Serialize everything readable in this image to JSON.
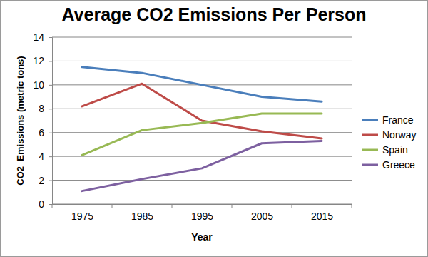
{
  "chart_data": {
    "type": "line",
    "title": "Average CO2 Emissions Per Person",
    "x_label": "Year",
    "y_label": "CO2  Emissions (metric tons)",
    "categories": [
      "1975",
      "1985",
      "1995",
      "2005",
      "2015"
    ],
    "series": [
      {
        "name": "France",
        "color": "#4a7ebb",
        "values": [
          11.5,
          11.0,
          10.0,
          9.0,
          8.6
        ]
      },
      {
        "name": "Norway",
        "color": "#be4b48",
        "values": [
          8.2,
          10.1,
          7.0,
          6.1,
          5.5
        ]
      },
      {
        "name": "Spain",
        "color": "#98b954",
        "values": [
          4.1,
          6.2,
          6.8,
          7.6,
          7.6
        ]
      },
      {
        "name": "Greece",
        "color": "#7d60a0",
        "values": [
          1.1,
          2.1,
          3.0,
          5.1,
          5.3
        ]
      }
    ],
    "ylim": [
      0,
      14
    ],
    "yticks": [
      0,
      2,
      4,
      6,
      8,
      10,
      12,
      14
    ],
    "grid": true,
    "legend": "right"
  }
}
